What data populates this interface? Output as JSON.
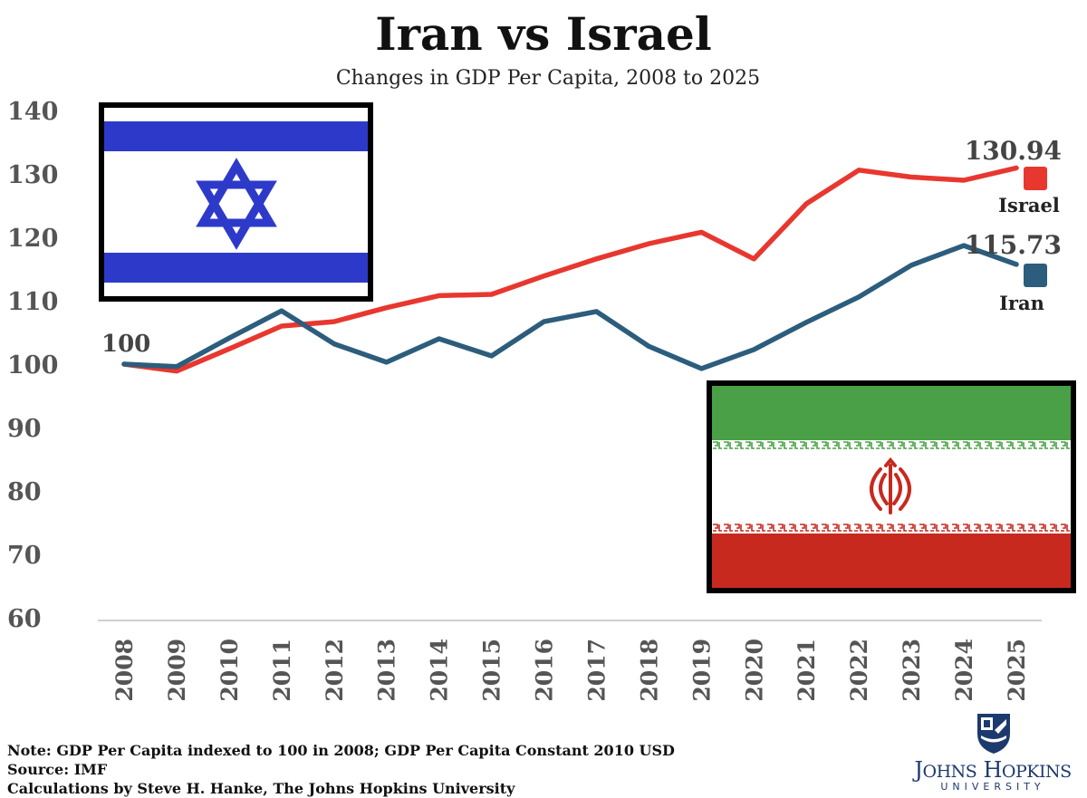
{
  "header": {
    "title": "Iran vs Israel",
    "subtitle": "Changes in GDP Per Capita, 2008 to 2025"
  },
  "chart_data": {
    "type": "line",
    "title": "Iran vs Israel",
    "subtitle": "Changes in GDP Per Capita, 2008 to 2025",
    "xlabel": "",
    "ylabel": "",
    "ylim": [
      60,
      140
    ],
    "yticks": [
      140,
      130,
      120,
      110,
      100,
      90,
      80,
      70,
      60
    ],
    "grid": false,
    "x": [
      "2008",
      "2009",
      "2010",
      "2011",
      "2012",
      "2013",
      "2014",
      "2015",
      "2016",
      "2017",
      "2018",
      "2019",
      "2020",
      "2021",
      "2022",
      "2023",
      "2024",
      "2025"
    ],
    "start_label": "100",
    "series": [
      {
        "name": "Israel",
        "color": "#e8372f",
        "values": [
          100,
          98.9,
          102.4,
          106,
          106.7,
          108.9,
          110.8,
          111,
          113.9,
          116.6,
          119,
          120.8,
          116.6,
          125.3,
          130.6,
          129.5,
          129,
          130.94
        ],
        "end_label": "130.94"
      },
      {
        "name": "Iran",
        "color": "#2c5d7c",
        "values": [
          100,
          99.6,
          104.1,
          108.4,
          103.2,
          100.3,
          104,
          101.3,
          106.7,
          108.3,
          102.8,
          99.3,
          102.3,
          106.6,
          110.6,
          115.6,
          118.7,
          115.73
        ],
        "end_label": "115.73"
      }
    ]
  },
  "flags": {
    "israel": {
      "blue": "#2d3ac9",
      "white": "#ffffff",
      "border": "#000000",
      "icon": "star-of-david-icon"
    },
    "iran": {
      "green": "#4aa046",
      "white": "#ffffff",
      "red": "#c8291f",
      "border": "#000000",
      "icon": "iran-emblem-icon"
    }
  },
  "notes": {
    "line1": "Note: GDP Per Capita indexed to 100 in 2008; GDP Per Capita Constant 2010 USD",
    "line2": "Source: IMF",
    "line3": "Calculations by Steve H. Hanke, The Johns Hopkins University"
  },
  "logo": {
    "name": "Johns Hopkins",
    "sub": "UNIVERSITY",
    "color": "#1d3a6e",
    "icon": "jhu-shield-icon"
  }
}
